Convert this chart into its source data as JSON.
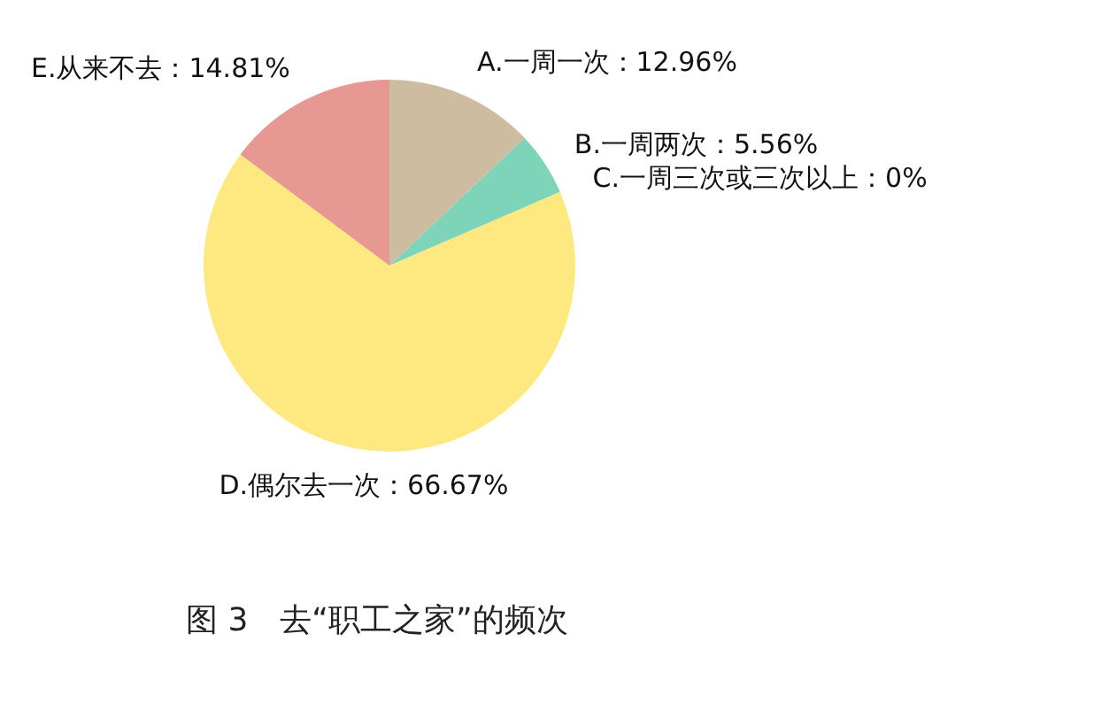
{
  "chart_data": {
    "type": "pie",
    "title": "图 3　去“职工之家”的频次",
    "categories": [
      "A.一周一次：12.96%",
      "B.一周两次：5.56%",
      "C.一周三次或三次以上：0%",
      "D.偶尔去一次：66.67%",
      "E.从来不去：14.81%"
    ],
    "values": [
      12.96,
      5.56,
      0,
      66.67,
      14.81
    ],
    "colors": [
      "#cdbca0",
      "#7dd4b8",
      "#a0c4e8",
      "#fde97f",
      "#e89892"
    ]
  }
}
